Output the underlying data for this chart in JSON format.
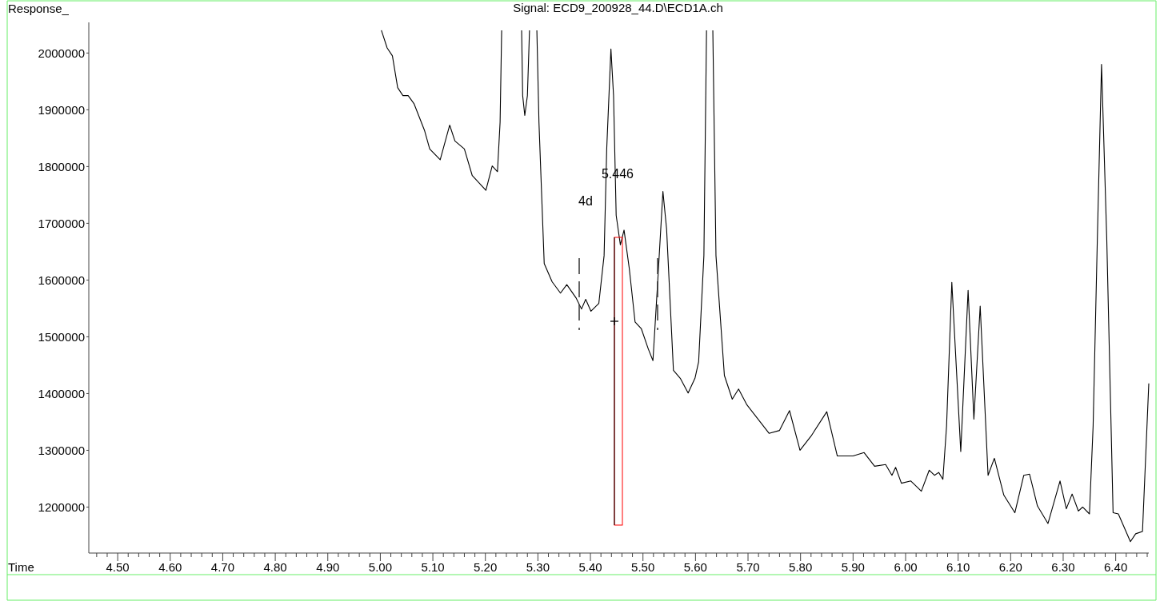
{
  "chart_data": {
    "type": "line",
    "title": "Signal: ECD9_200928_44.D\\ECD1A.ch",
    "xlabel": "Time",
    "ylabel": "Response_",
    "xlim": [
      4.445,
      6.463
    ],
    "ylim": [
      1119000,
      2054000
    ],
    "xticks": [
      {
        "value": 4.5,
        "label": "4.50"
      },
      {
        "value": 4.6,
        "label": "4.60"
      },
      {
        "value": 4.7,
        "label": "4.70"
      },
      {
        "value": 4.8,
        "label": "4.80"
      },
      {
        "value": 4.9,
        "label": "4.90"
      },
      {
        "value": 5.0,
        "label": "5.00"
      },
      {
        "value": 5.1,
        "label": "5.10"
      },
      {
        "value": 5.2,
        "label": "5.20"
      },
      {
        "value": 5.3,
        "label": "5.30"
      },
      {
        "value": 5.4,
        "label": "5.40"
      },
      {
        "value": 5.5,
        "label": "5.50"
      },
      {
        "value": 5.6,
        "label": "5.60"
      },
      {
        "value": 5.7,
        "label": "5.70"
      },
      {
        "value": 5.8,
        "label": "5.80"
      },
      {
        "value": 5.9,
        "label": "5.90"
      },
      {
        "value": 6.0,
        "label": "6.00"
      },
      {
        "value": 6.1,
        "label": "6.10"
      },
      {
        "value": 6.2,
        "label": "6.20"
      },
      {
        "value": 6.3,
        "label": "6.30"
      },
      {
        "value": 6.4,
        "label": "6.40"
      }
    ],
    "yticks": [
      1200000,
      1300000,
      1400000,
      1500000,
      1600000,
      1700000,
      1800000,
      1900000,
      2000000
    ],
    "grid": false,
    "marker": "none",
    "line_style": "solid",
    "annotations": [
      "4d",
      "5.446"
    ],
    "series": [
      {
        "color": "#000000",
        "x": [
          5.002,
          5.013,
          5.023,
          5.033,
          5.043,
          5.053,
          5.064,
          5.084,
          5.094,
          5.114,
          5.132,
          5.142,
          5.16,
          5.175,
          5.201,
          5.213,
          5.223,
          5.228,
          5.231,
          5.25,
          5.269,
          5.271,
          5.275,
          5.28,
          5.284,
          5.291,
          5.298,
          5.302,
          5.312,
          5.327,
          5.343,
          5.355,
          5.373,
          5.383,
          5.391,
          5.401,
          5.416,
          5.426,
          5.431,
          5.439,
          5.444,
          5.449,
          5.457,
          5.464,
          5.474,
          5.485,
          5.497,
          5.51,
          5.519,
          5.528,
          5.538,
          5.545,
          5.558,
          5.571,
          5.586,
          5.599,
          5.606,
          5.616,
          5.621,
          5.627,
          5.633,
          5.639,
          5.655,
          5.67,
          5.682,
          5.698,
          5.74,
          5.76,
          5.779,
          5.799,
          5.82,
          5.85,
          5.87,
          5.9,
          5.921,
          5.941,
          5.962,
          5.974,
          5.981,
          5.992,
          6.01,
          6.03,
          6.045,
          6.055,
          6.063,
          6.071,
          6.078,
          6.088,
          6.105,
          6.119,
          6.13,
          6.142,
          6.157,
          6.169,
          6.187,
          6.208,
          6.225,
          6.236,
          6.251,
          6.271,
          6.294,
          6.306,
          6.317,
          6.329,
          6.337,
          6.35,
          6.357,
          6.365,
          6.373,
          6.383,
          6.395,
          6.405,
          6.428,
          6.438,
          6.451,
          6.463
        ],
        "values": [
          2040000,
          2009000,
          1995000,
          1939000,
          1925000,
          1925000,
          1911000,
          1864000,
          1831000,
          1812000,
          1873000,
          1845000,
          1831000,
          1784000,
          1758000,
          1801000,
          1791000,
          1878000,
          2040000,
          null,
          2040000,
          1925000,
          1890000,
          1925000,
          2040000,
          null,
          2040000,
          1878000,
          1629000,
          1597000,
          1577000,
          1592000,
          1568000,
          1549000,
          1566000,
          1545000,
          1559000,
          1643000,
          1831000,
          2007000,
          1925000,
          1714000,
          1662000,
          1688000,
          1620000,
          1526000,
          1514000,
          1479000,
          1458000,
          1596000,
          1756000,
          1690000,
          1441000,
          1427000,
          1401000,
          1427000,
          1456000,
          1643000,
          2040000,
          null,
          2040000,
          1643000,
          1432000,
          1390000,
          1408000,
          1380000,
          1330000,
          1335000,
          1370000,
          1300000,
          1325000,
          1368000,
          1290000,
          1290000,
          1296000,
          1272000,
          1275000,
          1256000,
          1270000,
          1242000,
          1246000,
          1228000,
          1265000,
          1256000,
          1261000,
          1249000,
          1343000,
          1596000,
          1298000,
          1582000,
          1355000,
          1554000,
          1256000,
          1286000,
          1221000,
          1190000,
          1256000,
          1258000,
          1202000,
          1171000,
          1246000,
          1197000,
          1223000,
          1193000,
          1200000,
          1188000,
          1343000,
          1671000,
          1980000,
          1671000,
          1190000,
          1188000,
          1139000,
          1153000,
          1157000,
          1418000
        ]
      }
    ]
  }
}
